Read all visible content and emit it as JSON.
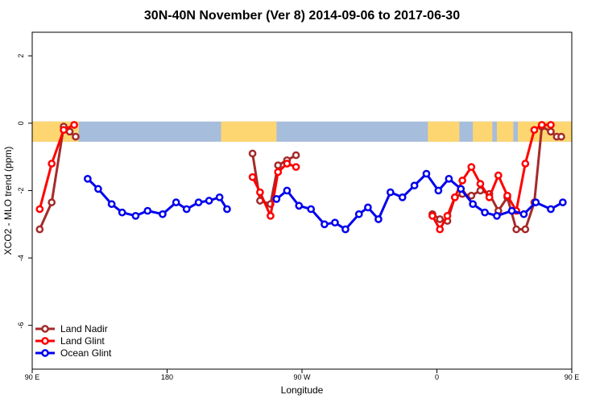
{
  "chart_data": {
    "type": "line",
    "title": "30N-40N November (Ver 8)   2014-09-06 to 2017-06-30",
    "xlabel": "Longitude",
    "ylabel": "XCO2 - MLO trend (ppm)",
    "xlim": [
      90,
      450
    ],
    "ylim": [
      -7.3,
      2.7
    ],
    "x_ticks": [
      {
        "value": 90,
        "label": "90 E"
      },
      {
        "value": 180,
        "label": "180"
      },
      {
        "value": 270,
        "label": "90 W"
      },
      {
        "value": 360,
        "label": "0"
      },
      {
        "value": 450,
        "label": "90 E"
      }
    ],
    "y_ticks": [
      {
        "value": 2,
        "label": "2"
      },
      {
        "value": 0,
        "label": "0"
      },
      {
        "value": -2,
        "label": "-2"
      },
      {
        "value": -4,
        "label": "-4"
      },
      {
        "value": -6,
        "label": "-6"
      }
    ],
    "legend_position": "bottom-left",
    "land_sea_band": {
      "ymin": -0.55,
      "ymax": 0.05,
      "ocean_color": "#a6bddb",
      "land_color": "#fdd672",
      "land_segments": [
        [
          90,
          121
        ],
        [
          216,
          253
        ],
        [
          354,
          375
        ],
        [
          384,
          397
        ],
        [
          400,
          411
        ],
        [
          414,
          450
        ]
      ]
    },
    "series": [
      {
        "name": "Land Nadir",
        "color": "#a52a2a",
        "segments": [
          {
            "x": [
              95,
              103,
              111,
              115,
              119
            ],
            "y": [
              -3.15,
              -2.35,
              -0.1,
              -0.25,
              -0.4
            ]
          },
          {
            "x": [
              237,
              242,
              249,
              254,
              260,
              266
            ],
            "y": [
              -0.9,
              -2.3,
              -2.4,
              -1.25,
              -1.1,
              -0.95
            ]
          },
          {
            "x": [
              357,
              362,
              367,
              372,
              377,
              383,
              389,
              395,
              401,
              407,
              413,
              419,
              425,
              430,
              436,
              440,
              443
            ],
            "y": [
              -2.7,
              -2.85,
              -2.9,
              -2.2,
              -2.1,
              -2.15,
              -2.0,
              -2.1,
              -2.6,
              -2.2,
              -3.15,
              -3.15,
              -2.35,
              -0.1,
              -0.25,
              -0.4,
              -0.4
            ]
          }
        ]
      },
      {
        "name": "Land Glint",
        "color": "#ff0000",
        "segments": [
          {
            "x": [
              95,
              103,
              111,
              118
            ],
            "y": [
              -2.55,
              -1.2,
              -0.2,
              -0.05
            ]
          },
          {
            "x": [
              237,
              242,
              249,
              254,
              260,
              266
            ],
            "y": [
              -1.6,
              -2.05,
              -2.75,
              -1.45,
              -1.2,
              -1.3
            ]
          },
          {
            "x": [
              357,
              362,
              367,
              372,
              377,
              383,
              389,
              395,
              401,
              407,
              413,
              419,
              425,
              430,
              436
            ],
            "y": [
              -2.75,
              -3.15,
              -2.75,
              -2.2,
              -1.7,
              -1.3,
              -1.8,
              -2.2,
              -1.55,
              -2.15,
              -2.6,
              -1.2,
              -0.2,
              -0.05,
              -0.05
            ]
          }
        ]
      },
      {
        "name": "Ocean Glint",
        "color": "#0000ee",
        "segments": [
          {
            "x": [
              127,
              134,
              143,
              150,
              159,
              167,
              177,
              186,
              193,
              201,
              208,
              215,
              220
            ],
            "y": [
              -1.65,
              -1.95,
              -2.4,
              -2.65,
              -2.75,
              -2.6,
              -2.7,
              -2.35,
              -2.55,
              -2.35,
              -2.3,
              -2.2,
              -2.55
            ]
          },
          {
            "x": [
              253,
              260,
              268,
              276,
              285,
              292,
              299,
              308,
              314,
              321,
              329,
              337,
              345,
              353,
              361,
              368,
              376,
              384,
              392,
              400,
              410,
              418,
              426,
              436,
              444
            ],
            "y": [
              -2.25,
              -2.0,
              -2.45,
              -2.55,
              -3.0,
              -2.95,
              -3.15,
              -2.7,
              -2.5,
              -2.85,
              -2.05,
              -2.2,
              -1.85,
              -1.5,
              -2.0,
              -1.65,
              -1.95,
              -2.4,
              -2.65,
              -2.75,
              -2.6,
              -2.7,
              -2.35,
              -2.55,
              -2.35
            ]
          }
        ]
      }
    ]
  }
}
